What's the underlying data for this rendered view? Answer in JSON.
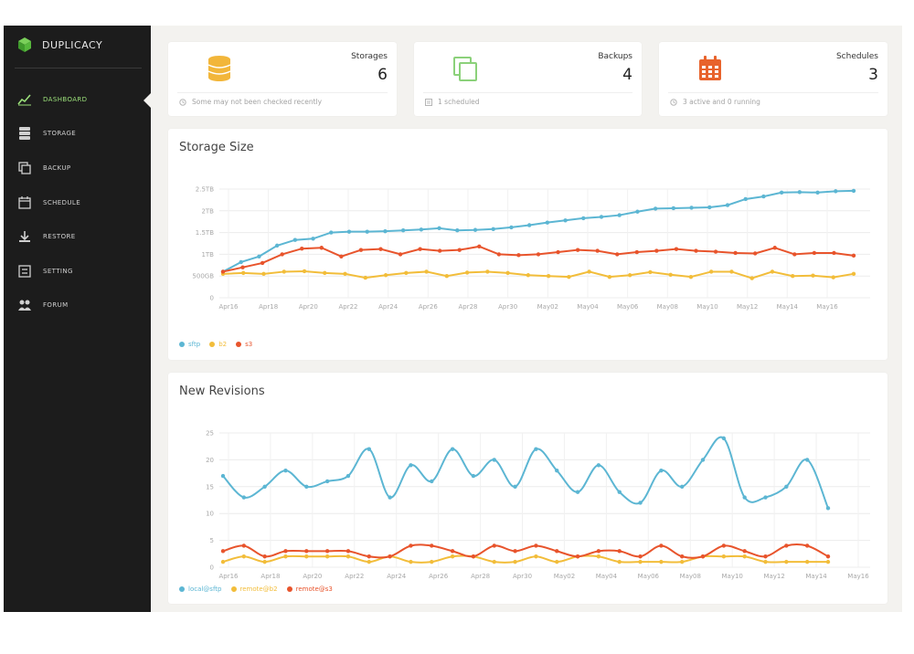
{
  "app": {
    "name": "DUPLICACY"
  },
  "colors": {
    "sidebar_bg": "#1c1c1c",
    "accent_green": "#9be07a",
    "series_blue": "#5cb6d3",
    "series_yellow": "#f2bd3a",
    "series_red": "#e8542c"
  },
  "nav": {
    "items": [
      {
        "label": "DASHBOARD",
        "icon": "chart-line-icon",
        "active": true
      },
      {
        "label": "STORAGE",
        "icon": "database-icon",
        "active": false
      },
      {
        "label": "BACKUP",
        "icon": "copy-icon",
        "active": false
      },
      {
        "label": "SCHEDULE",
        "icon": "calendar-icon",
        "active": false
      },
      {
        "label": "RESTORE",
        "icon": "download-icon",
        "active": false
      },
      {
        "label": "SETTING",
        "icon": "settings-icon",
        "active": false
      },
      {
        "label": "FORUM",
        "icon": "users-icon",
        "active": false
      }
    ]
  },
  "stats": [
    {
      "title": "Storages",
      "value": "6",
      "icon": "database-coins-icon",
      "foot_icon": "clock-icon",
      "foot": "Some may not been checked recently",
      "color": "#f2b63a"
    },
    {
      "title": "Backups",
      "value": "4",
      "icon": "copy-icon",
      "foot_icon": "list-icon",
      "foot": "1 scheduled",
      "color": "#8bd17a"
    },
    {
      "title": "Schedules",
      "value": "3",
      "icon": "calendar-icon",
      "foot_icon": "clock-icon",
      "foot": "3 active and 0 running",
      "color": "#e8632c"
    }
  ],
  "chart_data": [
    {
      "type": "line",
      "title": "Storage Size",
      "xlabel": "",
      "ylabel": "",
      "x_ticks": [
        "Apr16",
        "Apr18",
        "Apr20",
        "Apr22",
        "Apr24",
        "Apr26",
        "Apr28",
        "Apr30",
        "May02",
        "May04",
        "May06",
        "May08",
        "May10",
        "May12",
        "May14",
        "May16"
      ],
      "y_ticks": [
        "0",
        "500GB",
        "1TB",
        "1.5TB",
        "2TB",
        "2.5TB"
      ],
      "ylim": [
        0,
        2.5
      ],
      "grid": true,
      "legend": "bottom-left",
      "series": [
        {
          "name": "sftp",
          "color": "#5cb6d3",
          "values": [
            0.6,
            0.82,
            0.95,
            1.2,
            1.33,
            1.36,
            1.5,
            1.52,
            1.52,
            1.53,
            1.55,
            1.57,
            1.6,
            1.55,
            1.56,
            1.58,
            1.62,
            1.67,
            1.73,
            1.78,
            1.83,
            1.86,
            1.9,
            1.98,
            2.05,
            2.06,
            2.07,
            2.08,
            2.13,
            2.27,
            2.33,
            2.42,
            2.43,
            2.42,
            2.45,
            2.46
          ]
        },
        {
          "name": "b2",
          "color": "#f2bd3a",
          "values": [
            0.55,
            0.57,
            0.55,
            0.6,
            0.61,
            0.57,
            0.55,
            0.46,
            0.52,
            0.57,
            0.6,
            0.5,
            0.58,
            0.6,
            0.57,
            0.52,
            0.5,
            0.48,
            0.6,
            0.48,
            0.52,
            0.59,
            0.53,
            0.48,
            0.6,
            0.6,
            0.45,
            0.6,
            0.5,
            0.51,
            0.47,
            0.55
          ]
        },
        {
          "name": "s3",
          "color": "#e8542c",
          "values": [
            0.6,
            0.7,
            0.8,
            1.0,
            1.13,
            1.15,
            0.95,
            1.1,
            1.12,
            1.0,
            1.12,
            1.08,
            1.1,
            1.18,
            1.0,
            0.98,
            1.0,
            1.05,
            1.1,
            1.08,
            1.0,
            1.05,
            1.08,
            1.12,
            1.08,
            1.06,
            1.03,
            1.02,
            1.15,
            1.0,
            1.03,
            1.03,
            0.97
          ]
        }
      ]
    },
    {
      "type": "line",
      "title": "New Revisions",
      "xlabel": "",
      "ylabel": "",
      "x_ticks": [
        "Apr16",
        "Apr18",
        "Apr20",
        "Apr22",
        "Apr24",
        "Apr26",
        "Apr28",
        "Apr30",
        "May02",
        "May04",
        "May06",
        "May08",
        "May10",
        "May12",
        "May14",
        "May16"
      ],
      "y_ticks": [
        "0",
        "5",
        "10",
        "15",
        "20",
        "25"
      ],
      "ylim": [
        0,
        25
      ],
      "grid": true,
      "legend": "bottom-left",
      "series": [
        {
          "name": "local@sftp",
          "color": "#5cb6d3",
          "values": [
            17,
            13,
            15,
            18,
            15,
            16,
            17,
            22,
            13,
            19,
            16,
            22,
            17,
            20,
            15,
            22,
            18,
            14,
            19,
            14,
            12,
            18,
            15,
            20,
            24,
            13,
            13,
            15,
            20,
            11
          ]
        },
        {
          "name": "remote@b2",
          "color": "#f2bd3a",
          "values": [
            1,
            2,
            1,
            2,
            2,
            2,
            2,
            1,
            2,
            1,
            1,
            2,
            2,
            1,
            1,
            2,
            1,
            2,
            2,
            1,
            1,
            1,
            1,
            2,
            2,
            2,
            1,
            1,
            1,
            1
          ]
        },
        {
          "name": "remote@s3",
          "color": "#e8542c",
          "values": [
            3,
            4,
            2,
            3,
            3,
            3,
            3,
            2,
            2,
            4,
            4,
            3,
            2,
            4,
            3,
            4,
            3,
            2,
            3,
            3,
            2,
            4,
            2,
            2,
            4,
            3,
            2,
            4,
            4,
            2
          ]
        }
      ]
    }
  ]
}
